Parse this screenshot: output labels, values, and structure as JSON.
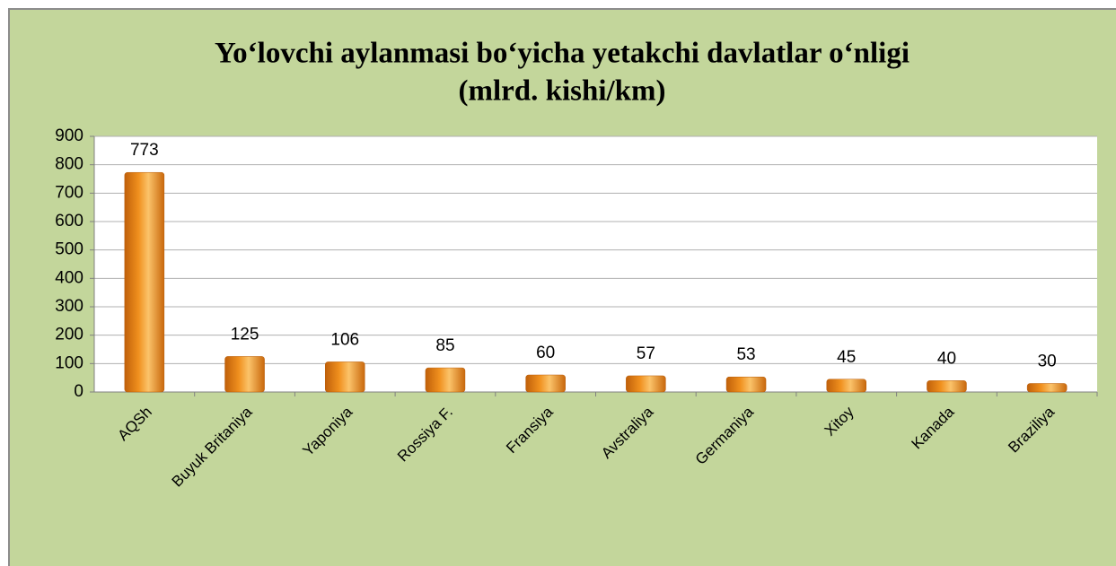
{
  "chart_data": {
    "type": "bar",
    "title": "Yo‘lovchi aylanmasi bo‘yicha yetakchi davlatlar o‘nligi",
    "subtitle": "(mlrd. kishi/km)",
    "categories": [
      "AQSh",
      "Buyuk Britaniya",
      "Yaponiya",
      "Rossiya F.",
      "Fransiya",
      "Avstraliya",
      "Germaniya",
      "Xitoy",
      "Kanada",
      "Braziliya"
    ],
    "values": [
      773,
      125,
      106,
      85,
      60,
      57,
      53,
      45,
      40,
      30
    ],
    "color": "#f0901e",
    "ylim": [
      0,
      900
    ],
    "yticks": [
      0,
      100,
      200,
      300,
      400,
      500,
      600,
      700,
      800,
      900
    ],
    "grid": true
  }
}
